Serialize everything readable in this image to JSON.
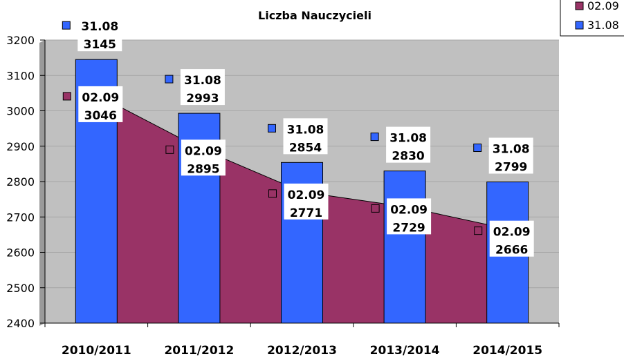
{
  "chart_data": {
    "type": "bar",
    "title": "Liczba Nauczycieli",
    "categories": [
      "2010/2011",
      "2011/2012",
      "2012/2013",
      "2013/2014",
      "2014/2015"
    ],
    "series": [
      {
        "name": "02.09",
        "kind": "area",
        "color": "#993366",
        "values": [
          3046,
          2895,
          2771,
          2729,
          2666
        ]
      },
      {
        "name": "31.08",
        "kind": "bar",
        "color": "#3366FF",
        "values": [
          3145,
          2993,
          2854,
          2830,
          2799
        ]
      }
    ],
    "ylim": [
      2400,
      3200
    ],
    "yticks": [
      2400,
      2500,
      2600,
      2700,
      2800,
      2900,
      3000,
      3100,
      3200
    ],
    "ytick_labels": [
      "2400",
      "2500",
      "2600",
      "2700",
      "2800",
      "2900",
      "3000",
      "3100",
      "3200"
    ],
    "xlabel": "",
    "ylabel": "",
    "grid": true,
    "legend": {
      "position": "top-right",
      "entries": [
        "02.09",
        "31.08"
      ]
    },
    "plot_background": "#C0C0C0",
    "grid_color": "#A6A6A6"
  }
}
